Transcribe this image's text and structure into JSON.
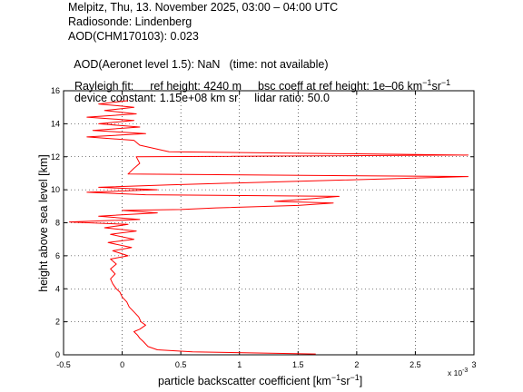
{
  "header": {
    "line1": "Melpitz, Thu, 13. November 2025, 03:00 – 04:00 UTC",
    "line2": "Radiosonde: Lindenberg",
    "line3": "AOD(CHM170103): 0.023",
    "line4_label": "AOD(Aeronet level 1.5): NaN",
    "line4_note": "(time: not available)",
    "rayleigh_label": "Rayleigh fit:",
    "ref_height": "ref height: 4240 m",
    "bsc_coeff": "bsc coeff at ref height: 1e–06 km",
    "bsc_unit_sup1": "−1",
    "bsc_unit_sr": "sr",
    "bsc_unit_sup2": "−1",
    "device_constant": "device constant: 1.15e+08 km sr",
    "lidar_ratio": "lidar ratio: 50.0"
  },
  "chart_data": {
    "type": "line",
    "xlabel_main": "particle backscatter coefficient [km",
    "xlabel_sup1": "−1",
    "xlabel_sr": "sr",
    "xlabel_sup2": "−1",
    "xlabel_end": "]",
    "ylabel": "height above sea level [km]",
    "x_multiplier": "x 10",
    "x_multiplier_exp": "-3",
    "xlim": [
      -0.5,
      3.0
    ],
    "ylim": [
      0,
      16
    ],
    "x_ticks": [
      -0.5,
      0,
      0.5,
      1,
      1.5,
      2,
      2.5,
      3
    ],
    "x_tick_labels": [
      "-0.5",
      "0",
      "0.5",
      "1",
      "1.5",
      "2",
      "2.5",
      "3"
    ],
    "y_ticks": [
      0,
      2,
      4,
      6,
      8,
      10,
      12,
      14,
      16
    ],
    "y_tick_labels": [
      "0",
      "2",
      "4",
      "6",
      "8",
      "10",
      "12",
      "14",
      "16"
    ],
    "grid": "dotted",
    "color": "#ff0000",
    "series": [
      {
        "points": [
          [
            1.65,
            0.05
          ],
          [
            0.6,
            0.18
          ],
          [
            0.3,
            0.3
          ],
          [
            0.22,
            0.5
          ],
          [
            0.18,
            0.8
          ],
          [
            0.15,
            1.0
          ],
          [
            0.13,
            1.2
          ],
          [
            0.1,
            1.4
          ],
          [
            0.15,
            1.55
          ],
          [
            0.2,
            1.8
          ],
          [
            0.16,
            2.0
          ],
          [
            0.14,
            2.3
          ],
          [
            0.1,
            2.6
          ],
          [
            0.06,
            2.9
          ],
          [
            0.04,
            3.2
          ],
          [
            0.0,
            3.5
          ],
          [
            -0.02,
            3.8
          ],
          [
            -0.05,
            4.0
          ],
          [
            -0.08,
            4.3
          ],
          [
            -0.1,
            4.6
          ],
          [
            -0.06,
            4.9
          ],
          [
            -0.1,
            5.2
          ],
          [
            -0.05,
            5.5
          ],
          [
            -0.1,
            5.8
          ],
          [
            0.05,
            6.0
          ],
          [
            -0.08,
            6.3
          ],
          [
            0.08,
            6.5
          ],
          [
            -0.12,
            6.8
          ],
          [
            0.1,
            7.0
          ],
          [
            -0.1,
            7.3
          ],
          [
            0.12,
            7.5
          ],
          [
            -0.15,
            7.7
          ],
          [
            0.05,
            7.9
          ],
          [
            -0.45,
            8.05
          ],
          [
            0.15,
            8.2
          ],
          [
            -0.2,
            8.4
          ],
          [
            0.3,
            8.6
          ],
          [
            0.0,
            8.75
          ],
          [
            0.5,
            8.8
          ],
          [
            0.8,
            8.9
          ],
          [
            1.5,
            9.05
          ],
          [
            1.8,
            9.2
          ],
          [
            1.3,
            9.3
          ],
          [
            1.6,
            9.45
          ],
          [
            1.85,
            9.6
          ],
          [
            0.2,
            9.7
          ],
          [
            -0.3,
            9.85
          ],
          [
            0.3,
            10.0
          ],
          [
            -0.2,
            10.15
          ],
          [
            0.4,
            10.3
          ],
          [
            2.95,
            10.8
          ],
          [
            0.05,
            10.95
          ],
          [
            0.1,
            11.3
          ],
          [
            0.15,
            11.6
          ],
          [
            0.12,
            12.0
          ],
          [
            2.95,
            12.1
          ],
          [
            0.4,
            12.3
          ],
          [
            0.15,
            12.7
          ],
          [
            0.1,
            13.0
          ],
          [
            -0.3,
            13.2
          ],
          [
            0.2,
            13.4
          ],
          [
            -0.25,
            13.6
          ],
          [
            0.15,
            13.8
          ],
          [
            -0.2,
            14.0
          ],
          [
            0.1,
            14.2
          ],
          [
            -0.3,
            14.4
          ],
          [
            0.12,
            14.6
          ],
          [
            -0.15,
            14.8
          ],
          [
            0.1,
            15.0
          ],
          [
            -0.2,
            15.2
          ],
          [
            0.05,
            15.4
          ]
        ]
      }
    ]
  }
}
